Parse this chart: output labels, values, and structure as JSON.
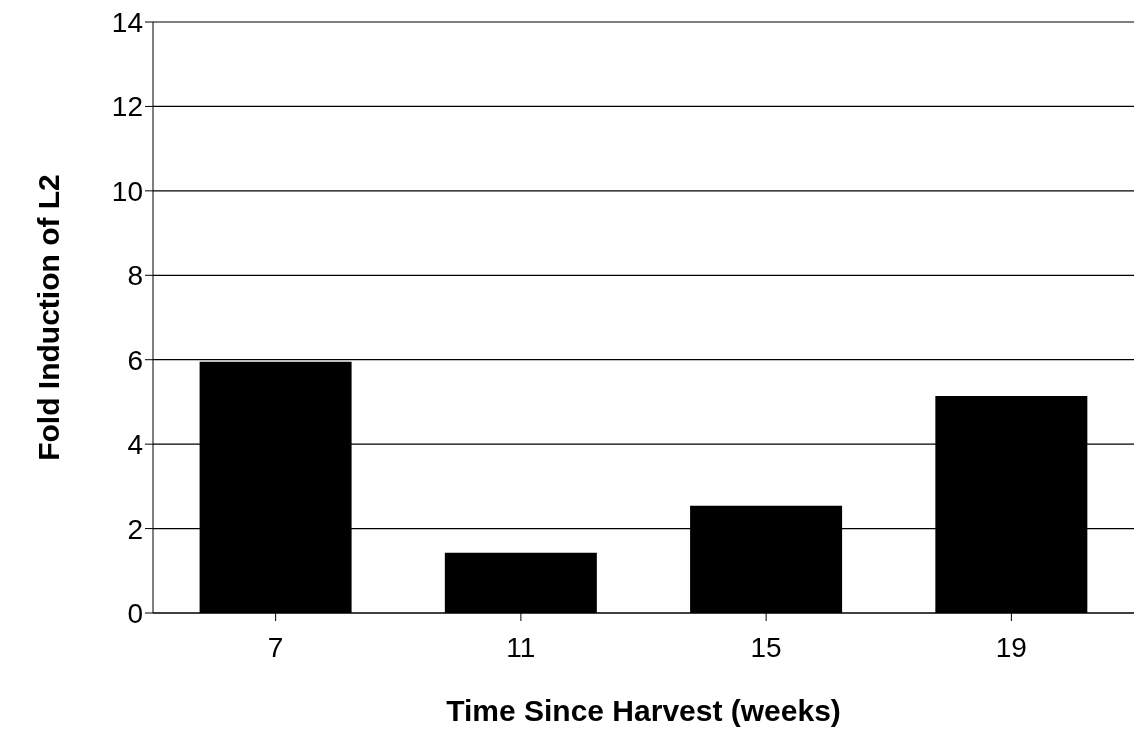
{
  "chart_data": {
    "type": "bar",
    "xlabel": "Time Since Harvest (weeks)",
    "ylabel": "Fold Induction of L2",
    "categories": [
      "7",
      "11",
      "15",
      "19"
    ],
    "values": [
      5.95,
      1.43,
      2.54,
      5.14
    ],
    "color": "#000000",
    "ylim": [
      0,
      14
    ],
    "yticks": [
      0,
      2,
      4,
      6,
      8,
      10,
      12,
      14
    ],
    "grid": "y"
  }
}
